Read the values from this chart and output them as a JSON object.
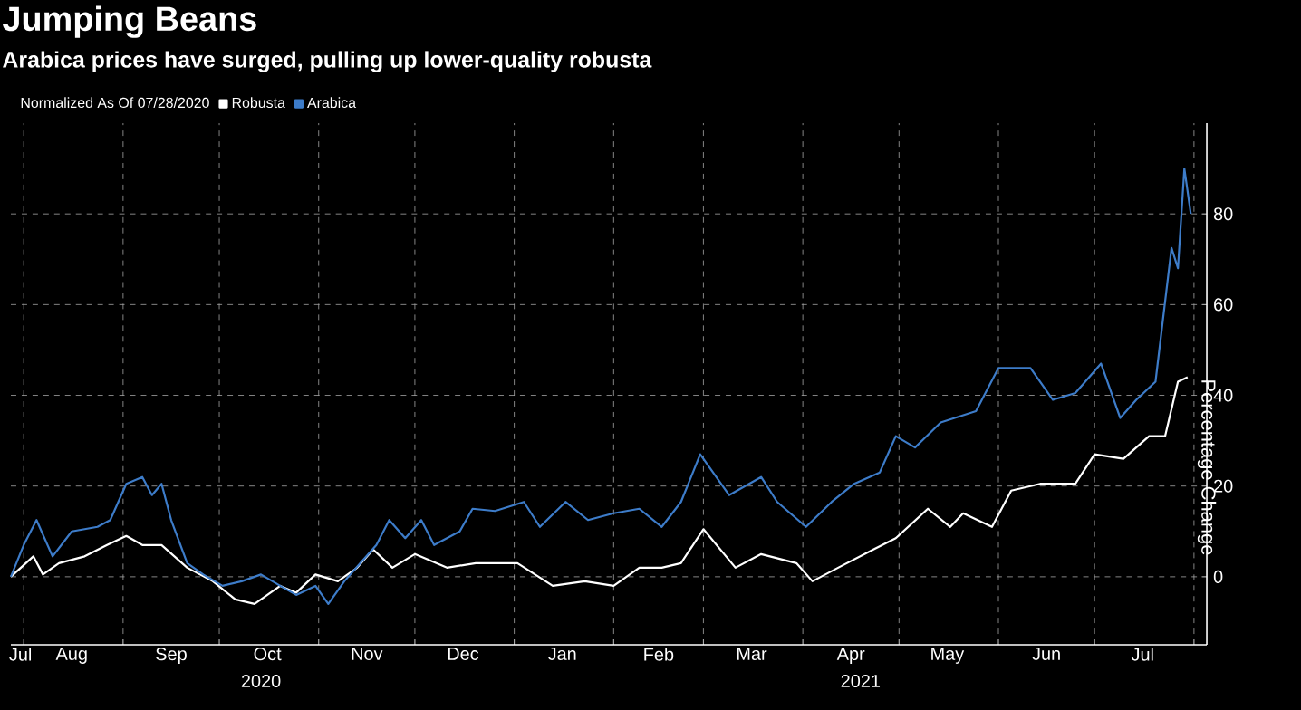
{
  "chart_data": {
    "type": "line",
    "title": "Jumping Beans",
    "subtitle": "Arabica prices have surged, pulling up lower-quality robusta",
    "legend_title": "Normalized As Of 07/28/2020",
    "ylabel": "Percentage Change",
    "xlim": [
      "2020-07-28",
      "2021-08-05"
    ],
    "xticks": [
      {
        "value": "2020-07-31",
        "label": "Jul"
      },
      {
        "value": "2020-08-01",
        "label": null
      },
      {
        "value": "2020-08-16",
        "label": "Aug"
      },
      {
        "value": "2020-09-01",
        "label": null
      },
      {
        "value": "2020-09-16",
        "label": "Sep"
      },
      {
        "value": "2020-10-01",
        "label": null
      },
      {
        "value": "2020-10-16",
        "label": "Oct"
      },
      {
        "value": "2020-11-01",
        "label": null
      },
      {
        "value": "2020-11-16",
        "label": "Nov"
      },
      {
        "value": "2020-12-01",
        "label": null
      },
      {
        "value": "2020-12-16",
        "label": "Dec"
      },
      {
        "value": "2021-01-01",
        "label": null
      },
      {
        "value": "2021-01-16",
        "label": "Jan"
      },
      {
        "value": "2021-02-01",
        "label": null
      },
      {
        "value": "2021-02-15",
        "label": "Feb"
      },
      {
        "value": "2021-03-01",
        "label": null
      },
      {
        "value": "2021-03-16",
        "label": "Mar"
      },
      {
        "value": "2021-04-01",
        "label": null
      },
      {
        "value": "2021-04-16",
        "label": "Apr"
      },
      {
        "value": "2021-05-01",
        "label": null
      },
      {
        "value": "2021-05-16",
        "label": "May"
      },
      {
        "value": "2021-06-01",
        "label": null
      },
      {
        "value": "2021-06-16",
        "label": "Jun"
      },
      {
        "value": "2021-07-01",
        "label": null
      },
      {
        "value": "2021-07-16",
        "label": "Jul"
      },
      {
        "value": "2021-08-01",
        "label": null
      }
    ],
    "ylim": [
      -15,
      100
    ],
    "yticks": [
      0,
      20,
      40,
      60,
      80
    ],
    "grid": true,
    "legend": "top left",
    "annotations": [
      "2020",
      "2021"
    ],
    "series": [
      {
        "name": "Robusta",
        "color": "#ffffff",
        "x": [
          "2020-07-28",
          "2020-08-04",
          "2020-08-07",
          "2020-08-12",
          "2020-08-20",
          "2020-08-27",
          "2020-09-02",
          "2020-09-07",
          "2020-09-13",
          "2020-09-21",
          "2020-09-29",
          "2020-10-06",
          "2020-10-12",
          "2020-10-20",
          "2020-10-25",
          "2020-10-31",
          "2020-11-07",
          "2020-11-13",
          "2020-11-18",
          "2020-11-24",
          "2020-12-01",
          "2020-12-11",
          "2020-12-20",
          "2021-01-02",
          "2021-01-13",
          "2021-01-23",
          "2021-02-01",
          "2021-02-09",
          "2021-02-16",
          "2021-02-22",
          "2021-03-01",
          "2021-03-11",
          "2021-03-19",
          "2021-03-30",
          "2021-04-04",
          "2021-04-12",
          "2021-04-23",
          "2021-04-30",
          "2021-05-10",
          "2021-05-17",
          "2021-05-21",
          "2021-05-30",
          "2021-06-05",
          "2021-06-14",
          "2021-06-25",
          "2021-07-01",
          "2021-07-10",
          "2021-07-18",
          "2021-07-23",
          "2021-07-27",
          "2021-07-30"
        ],
        "values": [
          0,
          4.5,
          0.5,
          3,
          4.5,
          7,
          9,
          7,
          7,
          2,
          -1,
          -5,
          -6,
          -2,
          -3.5,
          0.5,
          -1,
          2,
          6,
          2,
          5,
          2,
          3,
          3,
          -2,
          -1,
          -2,
          2,
          2,
          3,
          10.5,
          2,
          5,
          3,
          -1,
          2,
          6,
          8.5,
          15,
          11,
          14,
          11,
          19,
          20.5,
          20.5,
          27,
          26,
          31,
          31,
          43,
          44
        ]
      },
      {
        "name": "Arabica",
        "color": "#3d7cc9",
        "x": [
          "2020-07-28",
          "2020-08-01",
          "2020-08-05",
          "2020-08-10",
          "2020-08-16",
          "2020-08-24",
          "2020-08-28",
          "2020-09-02",
          "2020-09-07",
          "2020-09-10",
          "2020-09-13",
          "2020-09-16",
          "2020-09-21",
          "2020-09-26",
          "2020-10-02",
          "2020-10-08",
          "2020-10-14",
          "2020-10-20",
          "2020-10-25",
          "2020-10-31",
          "2020-11-04",
          "2020-11-09",
          "2020-11-14",
          "2020-11-19",
          "2020-11-23",
          "2020-11-28",
          "2020-12-03",
          "2020-12-07",
          "2020-12-15",
          "2020-12-19",
          "2020-12-26",
          "2021-01-04",
          "2021-01-09",
          "2021-01-17",
          "2021-01-24",
          "2021-02-01",
          "2021-02-09",
          "2021-02-16",
          "2021-02-22",
          "2021-02-28",
          "2021-03-09",
          "2021-03-19",
          "2021-03-24",
          "2021-04-02",
          "2021-04-10",
          "2021-04-17",
          "2021-04-25",
          "2021-04-30",
          "2021-05-06",
          "2021-05-14",
          "2021-05-25",
          "2021-06-01",
          "2021-06-11",
          "2021-06-18",
          "2021-06-25",
          "2021-07-03",
          "2021-07-09",
          "2021-07-14",
          "2021-07-20",
          "2021-07-25",
          "2021-07-27",
          "2021-07-29",
          "2021-07-31"
        ],
        "values": [
          0,
          7,
          12.5,
          4.5,
          10,
          11,
          12.5,
          20.5,
          22,
          18,
          20.5,
          12.5,
          3,
          0.5,
          -2,
          -1,
          0.5,
          -2,
          -4,
          -2,
          -6,
          -1,
          3,
          7,
          12.5,
          8.5,
          12.5,
          7,
          10,
          15,
          14.5,
          16.5,
          11,
          16.5,
          12.5,
          14,
          15,
          11,
          16.5,
          27,
          18,
          22,
          16.5,
          11,
          16.5,
          20.5,
          23,
          31,
          28.5,
          34,
          36.5,
          46,
          46,
          39,
          40.5,
          47,
          35,
          39,
          43,
          72.5,
          68,
          90,
          80
        ]
      }
    ]
  }
}
